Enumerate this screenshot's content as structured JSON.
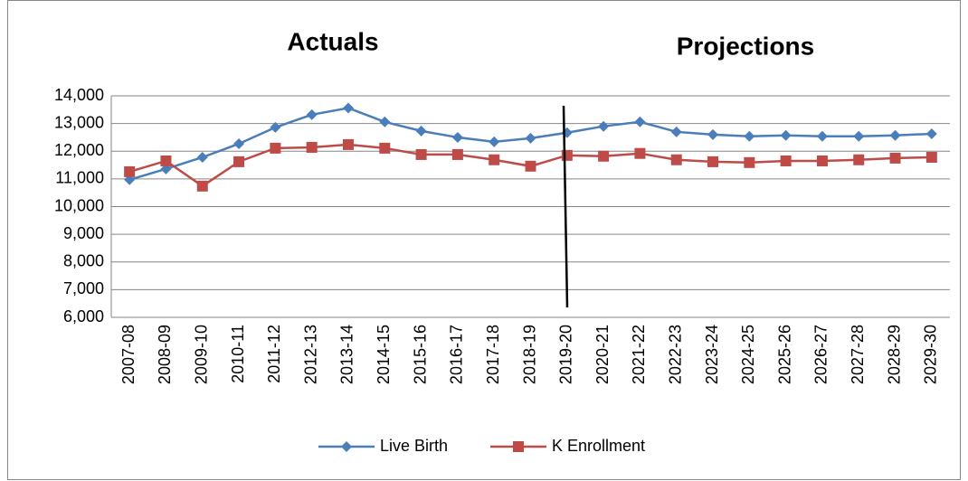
{
  "chart_data": {
    "type": "line",
    "annotations": [
      "Actuals",
      "Projections"
    ],
    "categories": [
      "2007-08",
      "2008-09",
      "2009-10",
      "2010-11",
      "2011-12",
      "2012-13",
      "2013-14",
      "2014-15",
      "2015-16",
      "2016-17",
      "2017-18",
      "2018-19",
      "2019-20",
      "2020-21",
      "2021-22",
      "2022-23",
      "2023-24",
      "2024-25",
      "2025-26",
      "2026-27",
      "2027-28",
      "2028-29",
      "2029-30"
    ],
    "series": [
      {
        "name": "Live Birth",
        "color": "#4a7ebb",
        "marker": "diamond",
        "values": [
          10970,
          11360,
          11780,
          12270,
          12860,
          13320,
          13560,
          13060,
          12730,
          12500,
          12340,
          12470,
          12670,
          12900,
          13060,
          12700,
          12600,
          12540,
          12570,
          12540,
          12540,
          12570,
          12630
        ]
      },
      {
        "name": "K Enrollment",
        "color": "#be4b48",
        "marker": "square",
        "values": [
          11260,
          11650,
          10740,
          11620,
          12110,
          12140,
          12240,
          12110,
          11880,
          11880,
          11690,
          11460,
          11850,
          11820,
          11920,
          11690,
          11620,
          11590,
          11650,
          11650,
          11690,
          11750,
          11780
        ]
      }
    ],
    "ylim": [
      6000,
      14000
    ],
    "yticks": [
      {
        "value": 6000,
        "label": "6,000"
      },
      {
        "value": 7000,
        "label": "7,000"
      },
      {
        "value": 8000,
        "label": "8,000"
      },
      {
        "value": 9000,
        "label": "9,000"
      },
      {
        "value": 10000,
        "label": "10,000"
      },
      {
        "value": 11000,
        "label": "11,000"
      },
      {
        "value": 12000,
        "label": "12,000"
      },
      {
        "value": 13000,
        "label": "13,000"
      },
      {
        "value": 14000,
        "label": "14,000"
      }
    ],
    "grid": true,
    "legend": "bottom"
  }
}
